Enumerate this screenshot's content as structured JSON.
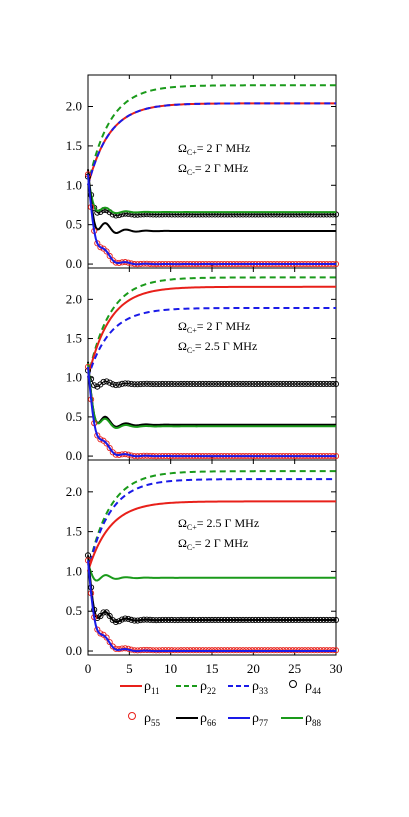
{
  "figure": {
    "legend": {
      "entries": [
        {
          "symbol": "ρ",
          "sub": "11",
          "color": "#e8201a",
          "style": "solid"
        },
        {
          "symbol": "ρ",
          "sub": "22",
          "color": "#1a9a1a",
          "style": "dashed"
        },
        {
          "symbol": "ρ",
          "sub": "33",
          "color": "#1a1ae8",
          "style": "dashed"
        },
        {
          "symbol": "ρ",
          "sub": "44",
          "color": "#000000",
          "style": "circle"
        },
        {
          "symbol": "ρ",
          "sub": "55",
          "color": "#e8201a",
          "style": "circle"
        },
        {
          "symbol": "ρ",
          "sub": "66",
          "color": "#000000",
          "style": "solid"
        },
        {
          "symbol": "ρ",
          "sub": "77",
          "color": "#1a1ae8",
          "style": "solid"
        },
        {
          "symbol": "ρ",
          "sub": "88",
          "color": "#1a9a1a",
          "style": "solid"
        }
      ]
    }
  },
  "chart_data": [
    {
      "type": "line",
      "title": "",
      "xlabel": "",
      "ylabel": "",
      "xlim": [
        0,
        30
      ],
      "ylim": [
        -0.05,
        2.4
      ],
      "x_ticks": [
        "0",
        "5",
        "10",
        "15",
        "20",
        "25",
        "30"
      ],
      "y_ticks": [
        "0.0",
        "0.5",
        "1.0",
        "1.5",
        "2.0"
      ],
      "annotations": [
        {
          "main": "Ω",
          "sub": "C+",
          "text": "= 2 Γ MHz"
        },
        {
          "main": "Ω",
          "sub": "C-",
          "text": "= 2 Γ MHz"
        }
      ],
      "series": [
        {
          "name": "ρ22",
          "final": 2.27,
          "osc": 0
        },
        {
          "name": "ρ11",
          "final": 2.04,
          "osc": 0
        },
        {
          "name": "ρ33",
          "final": 2.04,
          "osc": 0
        },
        {
          "name": "ρ44",
          "final": 0.63,
          "osc": 0.12
        },
        {
          "name": "ρ88",
          "final": 0.66,
          "osc": 0.12
        },
        {
          "name": "ρ66",
          "final": 0.42,
          "osc": 0.22
        },
        {
          "name": "ρ55",
          "final": 0.0,
          "osc": 0.15
        },
        {
          "name": "ρ77",
          "final": 0.0,
          "osc": 0.15
        }
      ]
    },
    {
      "type": "line",
      "title": "",
      "xlabel": "",
      "ylabel": "",
      "xlim": [
        0,
        30
      ],
      "ylim": [
        -0.05,
        2.4
      ],
      "x_ticks": [
        "0",
        "5",
        "10",
        "15",
        "20",
        "25",
        "30"
      ],
      "y_ticks": [
        "0.0",
        "0.5",
        "1.0",
        "1.5",
        "2.0"
      ],
      "annotations": [
        {
          "main": "Ω",
          "sub": "C+",
          "text": "= 2 Γ MHz"
        },
        {
          "main": "Ω",
          "sub": "C-",
          "text": "= 2.5 Γ MHz"
        }
      ],
      "series": [
        {
          "name": "ρ22",
          "final": 2.28,
          "osc": 0
        },
        {
          "name": "ρ11",
          "final": 2.16,
          "osc": 0
        },
        {
          "name": "ρ33",
          "final": 1.89,
          "osc": 0
        },
        {
          "name": "ρ44",
          "final": 0.92,
          "osc": 0.1
        },
        {
          "name": "ρ66",
          "final": 0.4,
          "osc": 0.22
        },
        {
          "name": "ρ88",
          "final": 0.38,
          "osc": 0.2
        },
        {
          "name": "ρ55",
          "final": 0.0,
          "osc": 0.15
        },
        {
          "name": "ρ77",
          "final": 0.0,
          "osc": 0.15
        }
      ]
    },
    {
      "type": "line",
      "title": "",
      "xlabel": "",
      "ylabel": "",
      "xlim": [
        0,
        30
      ],
      "ylim": [
        -0.05,
        2.4
      ],
      "x_ticks": [
        "0",
        "5",
        "10",
        "15",
        "20",
        "25",
        "30"
      ],
      "y_ticks": [
        "0.0",
        "0.5",
        "1.0",
        "1.5",
        "2.0"
      ],
      "annotations": [
        {
          "main": "Ω",
          "sub": "C+",
          "text": "= 2.5 Γ MHz"
        },
        {
          "main": "Ω",
          "sub": "C-",
          "text": "= 2 Γ MHz"
        }
      ],
      "series": [
        {
          "name": "ρ22",
          "final": 2.26,
          "osc": 0
        },
        {
          "name": "ρ33",
          "final": 2.16,
          "osc": 0
        },
        {
          "name": "ρ11",
          "final": 1.88,
          "osc": 0
        },
        {
          "name": "ρ88",
          "final": 0.92,
          "osc": 0.1
        },
        {
          "name": "ρ44",
          "final": 0.39,
          "osc": 0.22
        },
        {
          "name": "ρ66",
          "final": 0.39,
          "osc": 0.22
        },
        {
          "name": "ρ55",
          "final": 0.01,
          "osc": 0.15
        },
        {
          "name": "ρ77",
          "final": 0.0,
          "osc": 0.15
        }
      ]
    }
  ]
}
